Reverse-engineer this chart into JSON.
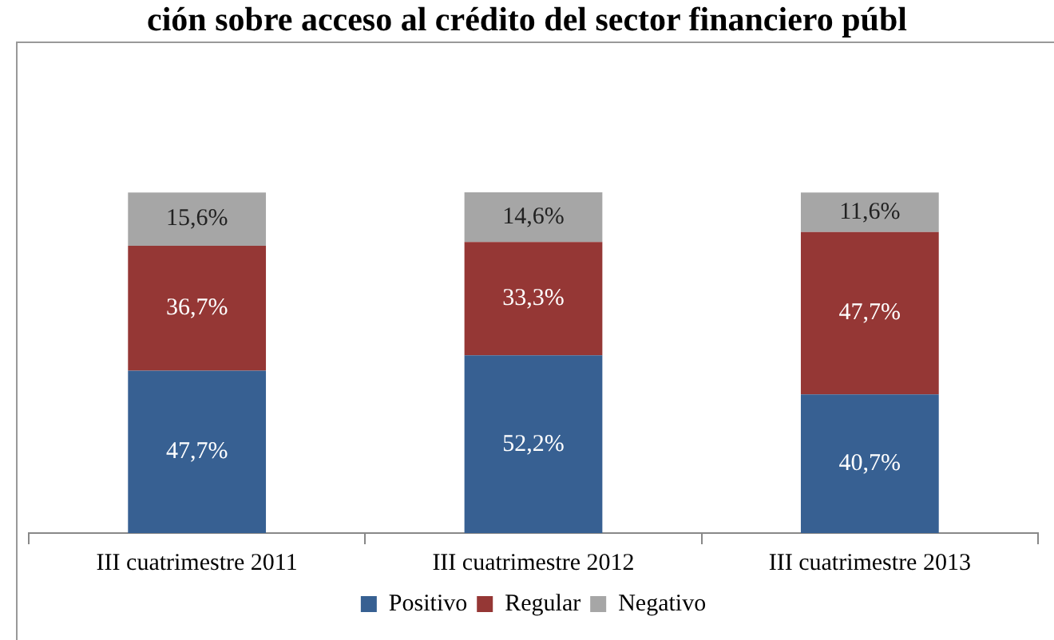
{
  "chart_data": {
    "type": "bar",
    "title": "ción sobre acceso al crédito del sector financiero públ",
    "categories": [
      "III cuatrimestre 2011",
      "III cuatrimestre 2012",
      "III cuatrimestre 2013"
    ],
    "stacked": true,
    "legend": "bottom",
    "grid": false,
    "series": [
      {
        "name": "Positivo",
        "color": "#376092",
        "values": [
          47.7,
          52.2,
          40.7
        ],
        "value_labels": [
          "47,7%",
          "52,2%",
          "40,7%"
        ]
      },
      {
        "name": "Regular",
        "color": "#953735",
        "values": [
          36.7,
          33.3,
          47.7
        ],
        "value_labels": [
          "36,7%",
          "33,3%",
          "47,7%"
        ]
      },
      {
        "name": "Negativo",
        "color": "#a6a6a6",
        "values": [
          15.6,
          14.6,
          11.6
        ],
        "value_labels": [
          "15,6%",
          "14,6%",
          "11,6%"
        ]
      }
    ]
  }
}
